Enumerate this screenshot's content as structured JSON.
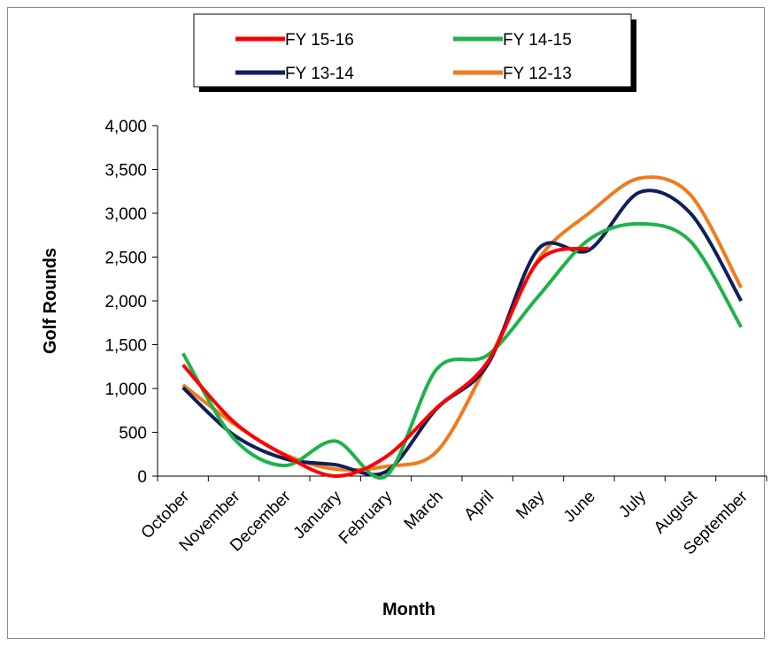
{
  "chart_data": {
    "type": "line",
    "title": "",
    "xlabel": "Month",
    "ylabel": "Golf Rounds",
    "categories": [
      "October",
      "November",
      "December",
      "January",
      "February",
      "March",
      "April",
      "May",
      "June",
      "July",
      "August",
      "September"
    ],
    "ylim": [
      0,
      4000
    ],
    "yticks": [
      0,
      500,
      1000,
      1500,
      2000,
      2500,
      3000,
      3500,
      4000
    ],
    "ytick_labels": [
      "0",
      "500",
      "1,000",
      "1,500",
      "2,000",
      "2,500",
      "3,000",
      "3,500",
      "4,000"
    ],
    "grid": false,
    "legend_position": "top",
    "series": [
      {
        "name": "FY 15-16",
        "color": "#ff0000",
        "values": [
          1270,
          620,
          240,
          0,
          220,
          780,
          1300,
          2450,
          2600,
          null,
          null,
          null
        ]
      },
      {
        "name": "FY 14-15",
        "color": "#1fb24a",
        "values": [
          1400,
          430,
          120,
          400,
          0,
          1220,
          1380,
          2050,
          2700,
          2880,
          2680,
          1700
        ]
      },
      {
        "name": "FY 13-14",
        "color": "#0f1f5c",
        "values": [
          1010,
          470,
          200,
          130,
          50,
          770,
          1270,
          2590,
          2580,
          3240,
          3000,
          2000
        ]
      },
      {
        "name": "FY 12-13",
        "color": "#f07b1d",
        "values": [
          1040,
          600,
          250,
          80,
          110,
          280,
          1290,
          2470,
          3000,
          3400,
          3210,
          2150
        ]
      }
    ]
  }
}
